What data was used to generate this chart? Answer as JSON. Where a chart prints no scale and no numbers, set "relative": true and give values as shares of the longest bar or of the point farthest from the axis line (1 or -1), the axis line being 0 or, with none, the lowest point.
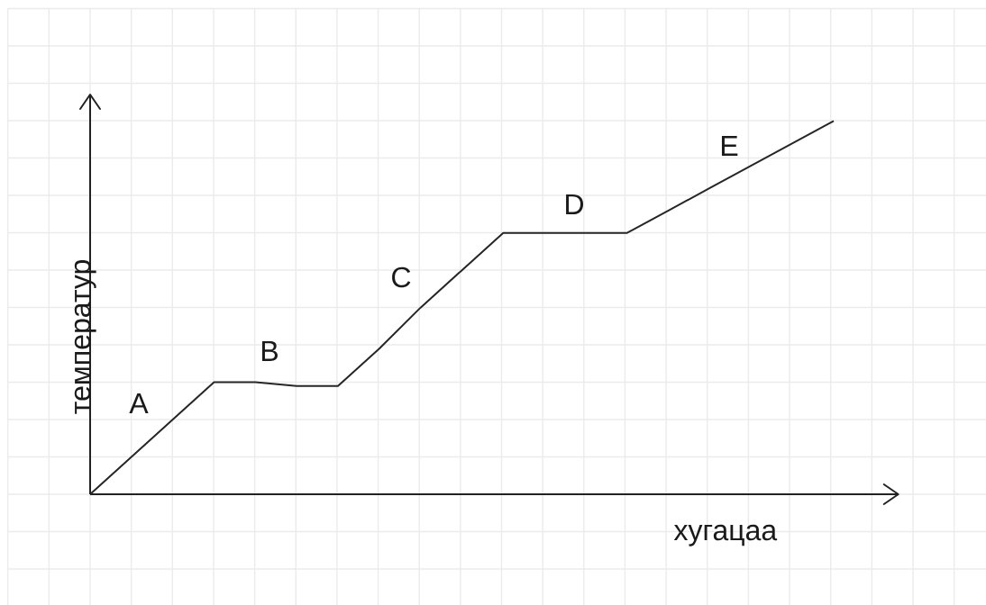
{
  "chart_data": {
    "type": "line",
    "xlabel": "хугацаа",
    "ylabel": "температур",
    "categories": [
      null,
      null,
      null,
      null,
      null,
      null,
      null,
      null,
      null,
      null,
      null,
      null,
      null,
      null,
      null,
      null,
      null,
      null,
      null
    ],
    "values": [
      0,
      0.1,
      0.2,
      0.3,
      0.3,
      0.29,
      0.29,
      0.39,
      0.5,
      0.6,
      0.7,
      0.7,
      0.7,
      0.7,
      0.76,
      0.82,
      0.88,
      0.94,
      1
    ],
    "color": "#262626",
    "relative": true,
    "grid": true,
    "annotations": [
      "A",
      "B",
      "C",
      "D",
      "E"
    ]
  }
}
